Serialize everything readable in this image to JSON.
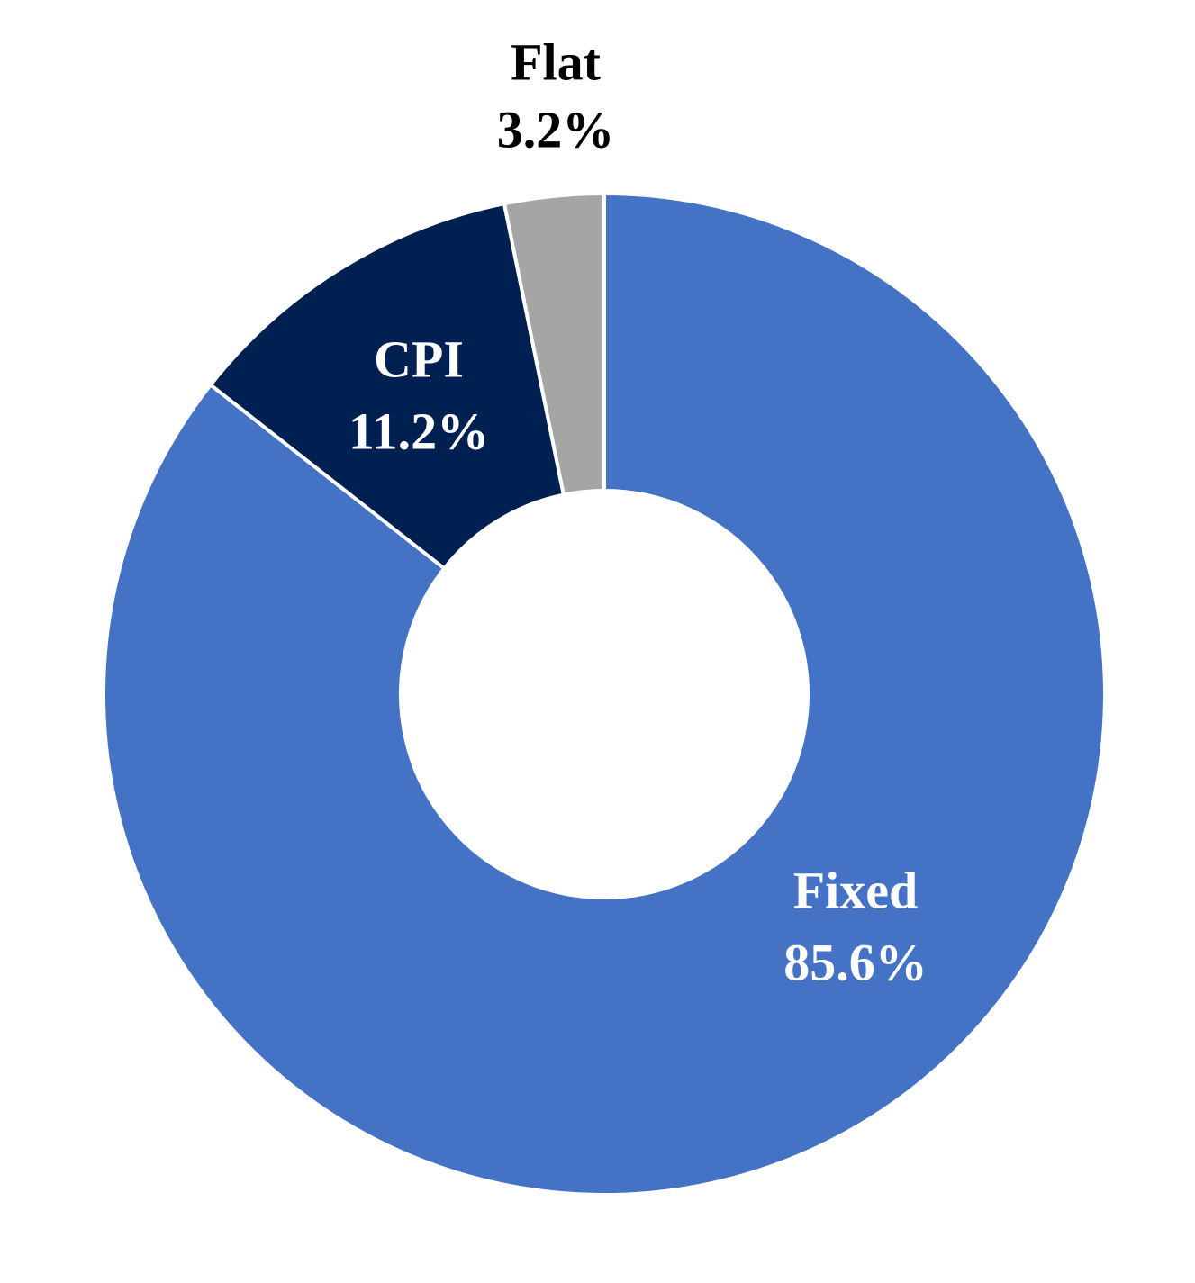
{
  "chart_data": {
    "type": "donut",
    "categories": [
      "Fixed",
      "CPI",
      "Flat"
    ],
    "values": [
      85.6,
      11.2,
      3.2
    ],
    "value_labels": [
      "85.6%",
      "11.2%",
      "3.2%"
    ],
    "colors": [
      "#4472c4",
      "#002052",
      "#a5a5a5"
    ]
  }
}
